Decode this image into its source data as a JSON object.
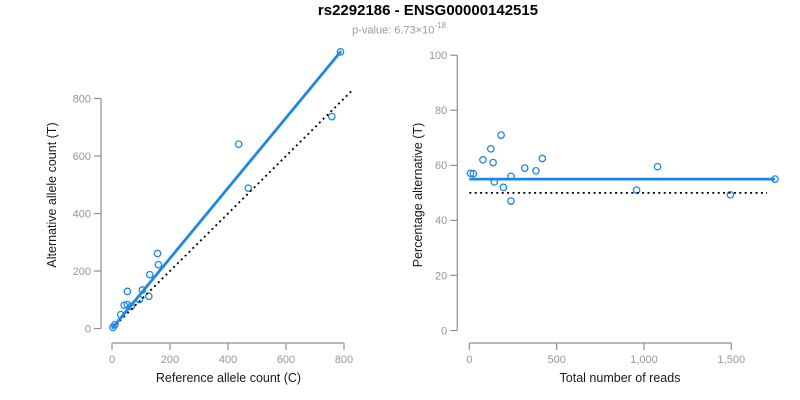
{
  "figure": {
    "title": "rs2292186 - ENSG00000142515",
    "subtitle_prefix": "p-value: 6.73×10",
    "subtitle_exponent": "-18"
  },
  "palette": {
    "accent_blue": "#1e87e5",
    "reference_line_black": "#000000",
    "axis_gray": "#8f8f8f",
    "tick_label_gray": "#969696",
    "axis_title_black": "#1a1a1a",
    "subtitle_gray": "#9a9a9a",
    "background": "#ffffff"
  },
  "chart_data": [
    {
      "type": "scatter",
      "name": "ref-vs-alt-counts",
      "xlabel": "Reference allele count (C)",
      "ylabel": "Alternative allele count (T)",
      "xlim": [
        0,
        835
      ],
      "ylim": [
        0,
        985
      ],
      "grid": false,
      "legend": null,
      "xticks": {
        "values": [
          0,
          200,
          400,
          600,
          800
        ],
        "labels": [
          "0",
          "200",
          "400",
          "600",
          "800"
        ]
      },
      "yticks": {
        "values": [
          0,
          200,
          400,
          600,
          800
        ],
        "labels": [
          "0",
          "200",
          "400",
          "600",
          "800"
        ]
      },
      "points": [
        [
          3,
          4
        ],
        [
          10,
          13
        ],
        [
          30,
          48
        ],
        [
          42,
          81
        ],
        [
          53,
          83
        ],
        [
          66,
          77
        ],
        [
          53,
          129
        ],
        [
          94,
          101
        ],
        [
          105,
          134
        ],
        [
          127,
          112
        ],
        [
          130,
          187
        ],
        [
          160,
          222
        ],
        [
          157,
          261
        ],
        [
          470,
          488
        ],
        [
          437,
          641
        ],
        [
          758,
          737
        ],
        [
          788,
          962
        ]
      ],
      "lines": [
        {
          "name": "identity-line",
          "color": "#000000",
          "dash": "dotted",
          "width": 1.8,
          "points": [
            [
              0,
              0
            ],
            [
              833,
              833
            ]
          ]
        },
        {
          "name": "fit-line",
          "color": "#1e87e5",
          "dash": "solid",
          "width": 2.8,
          "points": [
            [
              0,
              0
            ],
            [
              790,
              965
            ]
          ]
        }
      ]
    },
    {
      "type": "scatter",
      "name": "reads-vs-percentage",
      "xlabel": "Total number of reads",
      "ylabel": "Percentage alternative (T)",
      "xlim": [
        0,
        1790
      ],
      "ylim": [
        0,
        100
      ],
      "grid": false,
      "legend": null,
      "xticks": {
        "values": [
          0,
          500,
          1000,
          1500
        ],
        "labels": [
          "0",
          "500",
          "1,000",
          "1,500"
        ]
      },
      "yticks": {
        "values": [
          0,
          20,
          40,
          60,
          80,
          100
        ],
        "labels": [
          "0",
          "20",
          "40",
          "60",
          "80",
          "100"
        ]
      },
      "points": [
        [
          7,
          57.1
        ],
        [
          23,
          57
        ],
        [
          78,
          62
        ],
        [
          123,
          66
        ],
        [
          136,
          61
        ],
        [
          143,
          54
        ],
        [
          182,
          71
        ],
        [
          195,
          52
        ],
        [
          239,
          56
        ],
        [
          239,
          47
        ],
        [
          317,
          59
        ],
        [
          382,
          58
        ],
        [
          418,
          62.5
        ],
        [
          958,
          51
        ],
        [
          1078,
          59.5
        ],
        [
          1495,
          49.3
        ],
        [
          1750,
          55
        ]
      ],
      "lines": [
        {
          "name": "null-50pct-line",
          "color": "#000000",
          "dash": "dotted",
          "width": 1.8,
          "points": [
            [
              0,
              50
            ],
            [
              1705,
              50
            ]
          ]
        },
        {
          "name": "fit-line",
          "color": "#1e87e5",
          "dash": "solid",
          "width": 2.8,
          "points": [
            [
              0,
              55
            ],
            [
              1750,
              55
            ]
          ]
        }
      ]
    }
  ]
}
